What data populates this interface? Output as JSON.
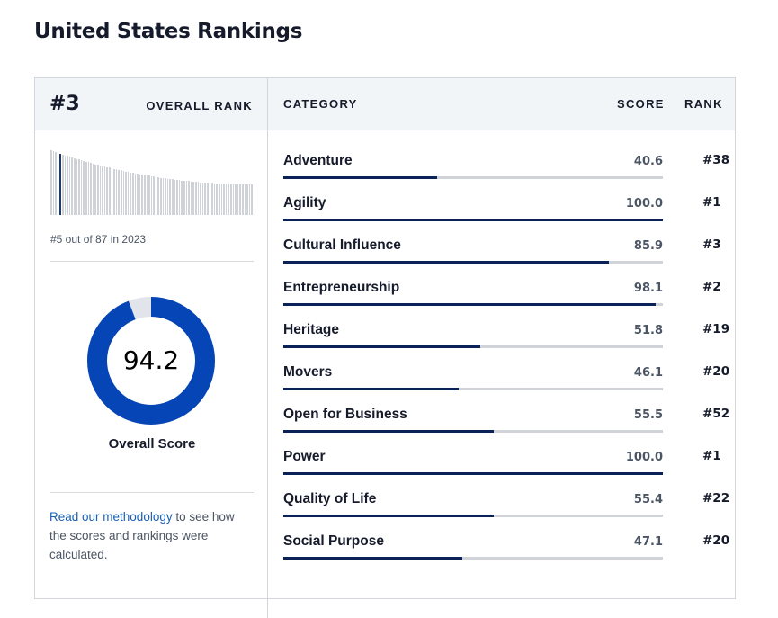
{
  "page": {
    "title": "United States Rankings"
  },
  "overall": {
    "rank": "#3",
    "rank_label": "OVERALL RANK",
    "history_text": "#5 out of 87 in 2023",
    "history_rank": 5,
    "history_total": 87,
    "score": "94.2",
    "score_value": 94.2,
    "score_max": 100,
    "score_label": "Overall Score",
    "colors": {
      "donut_fill": "#0645b5",
      "donut_track": "#e1e4ea",
      "highlight_bar": "#1f3b63",
      "bar": "#cfd2d6"
    }
  },
  "methodology": {
    "link_text": "Read our methodology",
    "rest_text": " to see how the scores and rankings were calculated."
  },
  "table": {
    "headers": {
      "category": "CATEGORY",
      "score": "SCORE",
      "rank": "RANK"
    },
    "rows": [
      {
        "category": "Adventure",
        "score": "40.6",
        "rank": "#38",
        "value": 40.6
      },
      {
        "category": "Agility",
        "score": "100.0",
        "rank": "#1",
        "value": 100.0
      },
      {
        "category": "Cultural Influence",
        "score": "85.9",
        "rank": "#3",
        "value": 85.9
      },
      {
        "category": "Entrepreneurship",
        "score": "98.1",
        "rank": "#2",
        "value": 98.1
      },
      {
        "category": "Heritage",
        "score": "51.8",
        "rank": "#19",
        "value": 51.8
      },
      {
        "category": "Movers",
        "score": "46.1",
        "rank": "#20",
        "value": 46.1
      },
      {
        "category": "Open for Business",
        "score": "55.5",
        "rank": "#52",
        "value": 55.5
      },
      {
        "category": "Power",
        "score": "100.0",
        "rank": "#1",
        "value": 100.0
      },
      {
        "category": "Quality of Life",
        "score": "55.4",
        "rank": "#22",
        "value": 55.4
      },
      {
        "category": "Social Purpose",
        "score": "47.1",
        "rank": "#20",
        "value": 47.1
      }
    ]
  }
}
